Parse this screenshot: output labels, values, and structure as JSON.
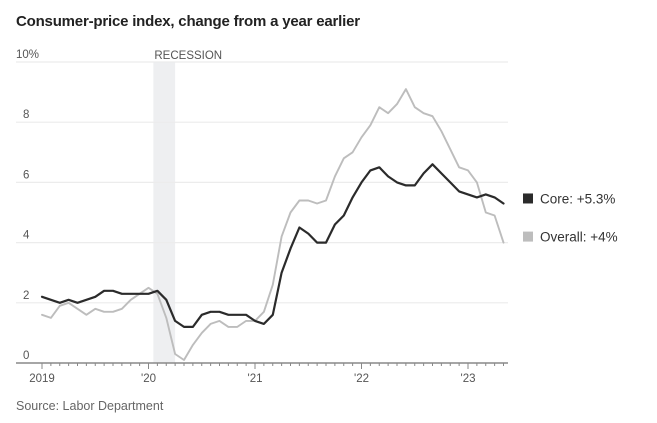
{
  "chart_data": {
    "type": "line",
    "title": "Consumer-price index, change from a year earlier",
    "source": "Source: Labor Department",
    "xlabel": "",
    "ylabel": "",
    "ylim": [
      0,
      10
    ],
    "y_ticks": [
      {
        "value": 10,
        "label": "10%"
      },
      {
        "value": 8,
        "label": "8"
      },
      {
        "value": 6,
        "label": "6"
      },
      {
        "value": 4,
        "label": "4"
      },
      {
        "value": 2,
        "label": "2"
      },
      {
        "value": 0,
        "label": "0"
      }
    ],
    "x_start": "2019-01",
    "x_end": "2023-05",
    "x_ticks": [
      {
        "month_index": 0,
        "label": "2019"
      },
      {
        "month_index": 12,
        "label": "'20"
      },
      {
        "month_index": 24,
        "label": "'21"
      },
      {
        "month_index": 36,
        "label": "'22"
      },
      {
        "month_index": 48,
        "label": "'23"
      }
    ],
    "grid": true,
    "annotation": {
      "label": "RECESSION",
      "start_month_index": 13,
      "end_month_index": 15
    },
    "legend_position": "right",
    "colors": {
      "core": "#2b2b2b",
      "overall": "#bdbdbd",
      "recession": "#eeeff1",
      "grid": "#ececec",
      "axis": "#888888"
    },
    "series": [
      {
        "name": "Core",
        "legend": "Core: +5.3%",
        "values": [
          2.2,
          2.1,
          2.0,
          2.1,
          2.0,
          2.1,
          2.2,
          2.4,
          2.4,
          2.3,
          2.3,
          2.3,
          2.3,
          2.4,
          2.1,
          1.4,
          1.2,
          1.2,
          1.6,
          1.7,
          1.7,
          1.6,
          1.6,
          1.6,
          1.4,
          1.3,
          1.6,
          3.0,
          3.8,
          4.5,
          4.3,
          4.0,
          4.0,
          4.6,
          4.9,
          5.5,
          6.0,
          6.4,
          6.5,
          6.2,
          6.0,
          5.9,
          5.9,
          6.3,
          6.6,
          6.3,
          6.0,
          5.7,
          5.6,
          5.5,
          5.6,
          5.5,
          5.3
        ]
      },
      {
        "name": "Overall",
        "legend": "Overall: +4%",
        "values": [
          1.6,
          1.5,
          1.9,
          2.0,
          1.8,
          1.6,
          1.8,
          1.7,
          1.7,
          1.8,
          2.1,
          2.3,
          2.5,
          2.3,
          1.5,
          0.3,
          0.1,
          0.6,
          1.0,
          1.3,
          1.4,
          1.2,
          1.2,
          1.4,
          1.4,
          1.7,
          2.6,
          4.2,
          5.0,
          5.4,
          5.4,
          5.3,
          5.4,
          6.2,
          6.8,
          7.0,
          7.5,
          7.9,
          8.5,
          8.3,
          8.6,
          9.1,
          8.5,
          8.3,
          8.2,
          7.7,
          7.1,
          6.5,
          6.4,
          6.0,
          5.0,
          4.9,
          4.0
        ]
      }
    ]
  }
}
